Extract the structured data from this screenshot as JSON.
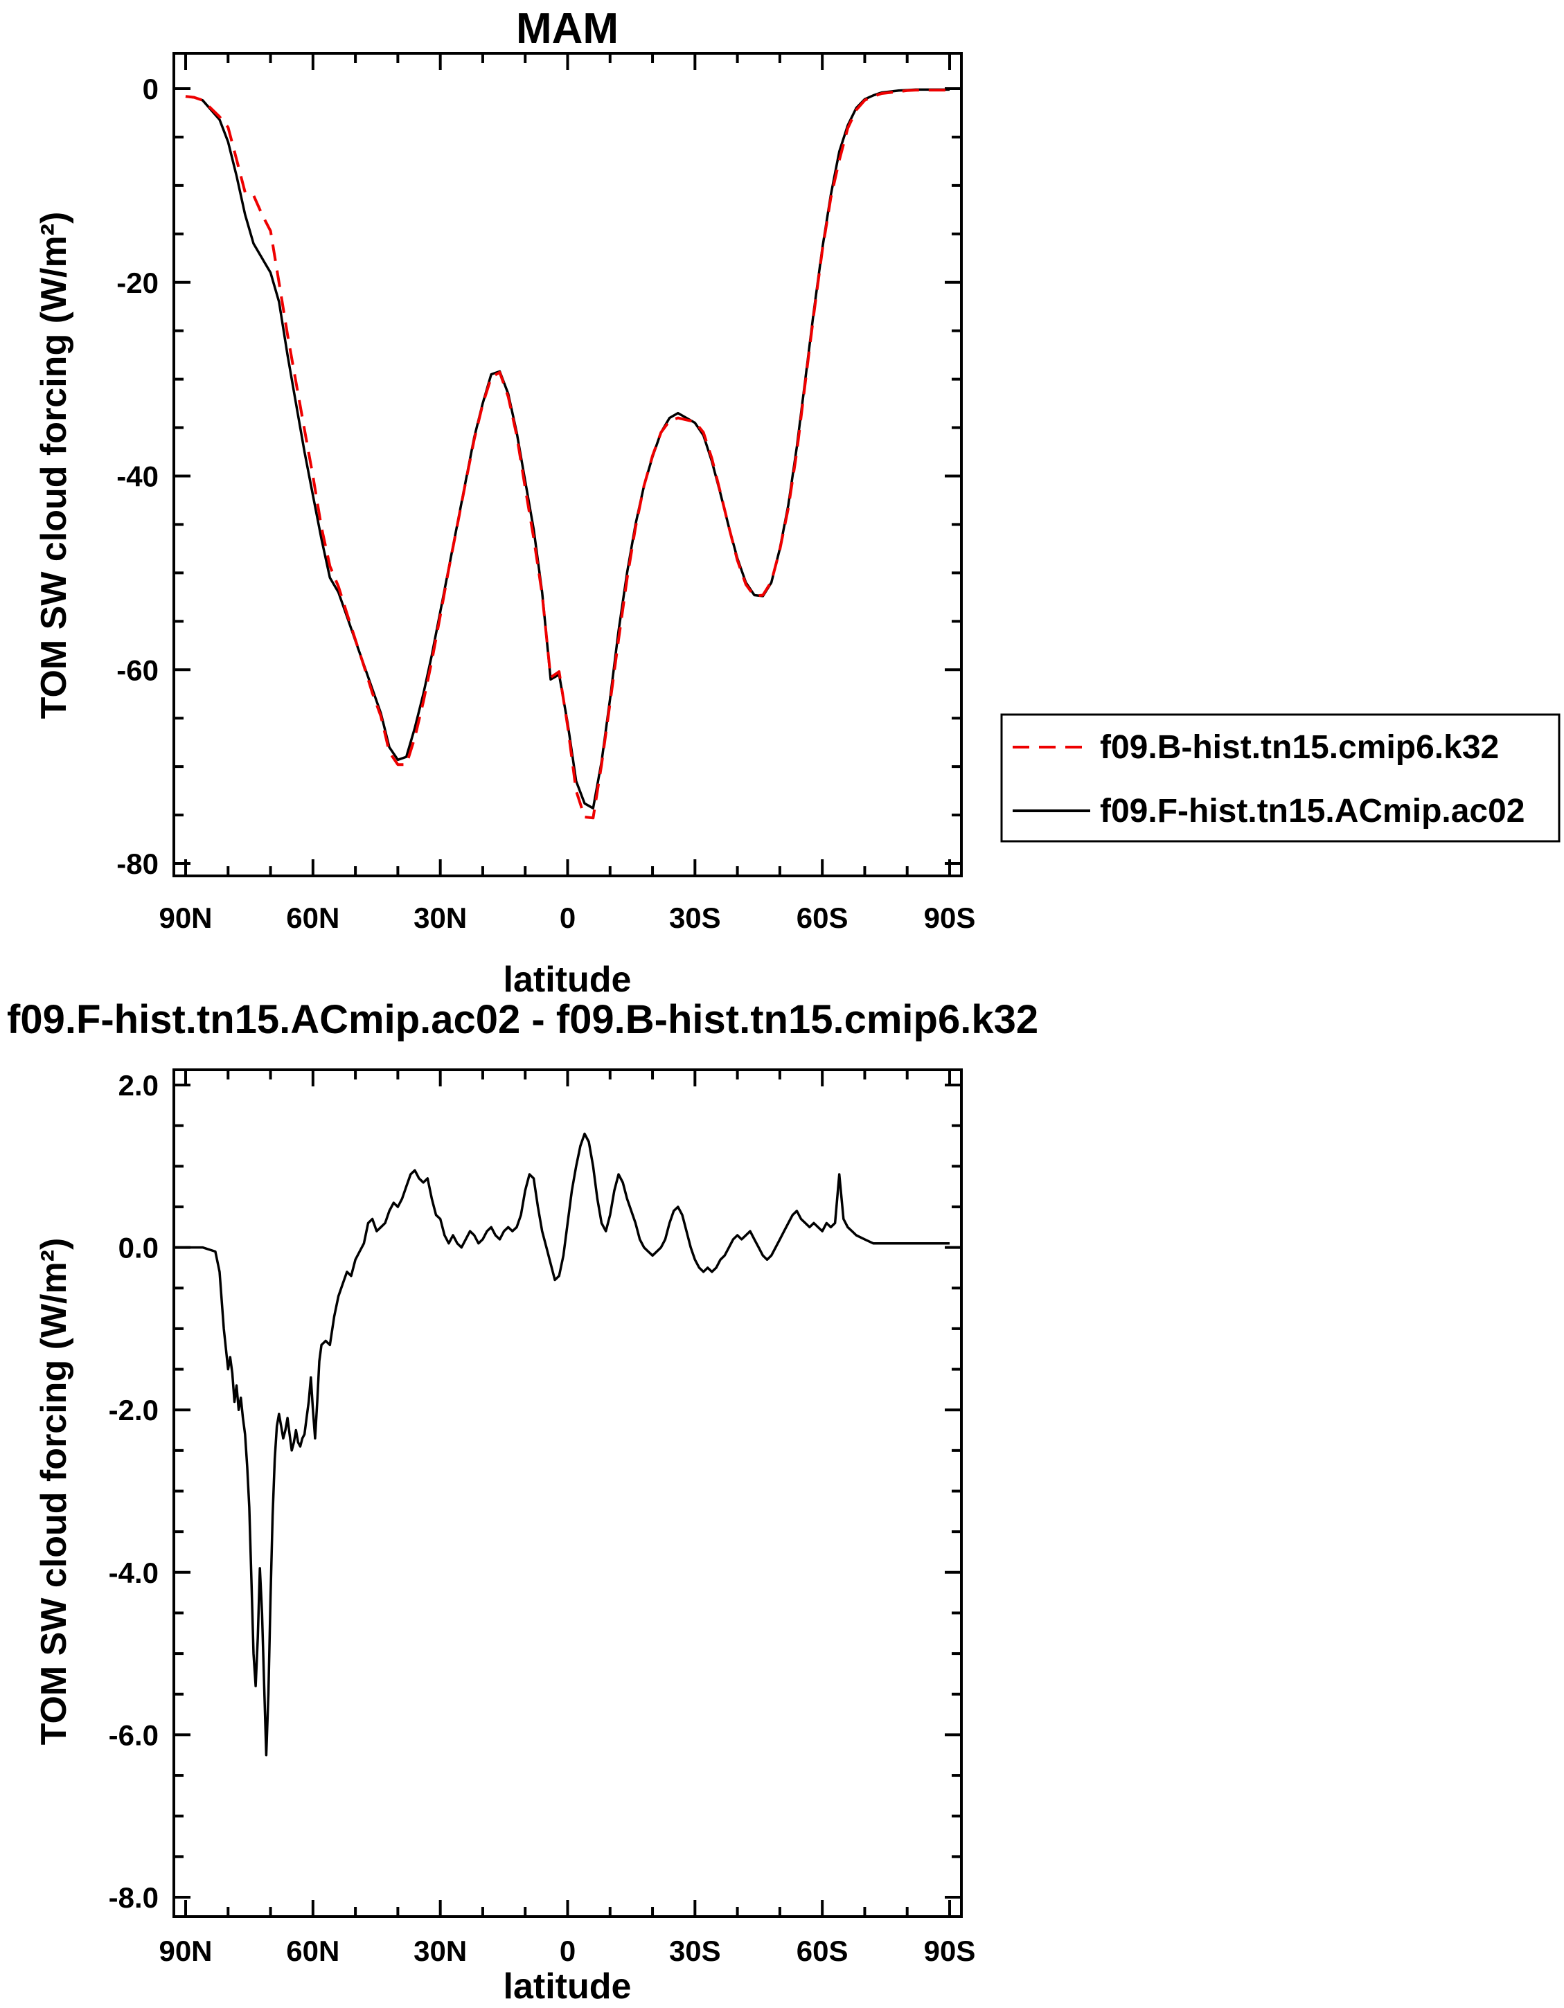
{
  "figure": {
    "background": "#ffffff",
    "frame_color": "#000000"
  },
  "chart_data": [
    {
      "type": "line",
      "title": "MAM",
      "xlabel": "latitude",
      "ylabel": "TOM SW cloud forcing (W/m²)",
      "xlim": [
        90,
        -90
      ],
      "ylim": [
        0,
        -80
      ],
      "grid": false,
      "legend_position": "outside-right",
      "x_ticks": {
        "values": [
          90,
          60,
          30,
          0,
          -30,
          -60,
          -90
        ],
        "labels": [
          "90N",
          "60N",
          "30N",
          "0",
          "30S",
          "60S",
          "90S"
        ],
        "minor_step": 10
      },
      "y_ticks": {
        "values": [
          0,
          -20,
          -40,
          -60,
          -80
        ],
        "labels": [
          "0",
          "-20",
          "-40",
          "-60",
          "-80"
        ],
        "minor_step": 5
      },
      "x": [
        90,
        88,
        86,
        84,
        82,
        80,
        78,
        76,
        74,
        72,
        70,
        68,
        66,
        64,
        62,
        60,
        58,
        56,
        54,
        52,
        50,
        48,
        46,
        44,
        42,
        40,
        38,
        36,
        34,
        32,
        30,
        28,
        26,
        24,
        22,
        20,
        18,
        16,
        14,
        12,
        10,
        8,
        6,
        4,
        2,
        0,
        -2,
        -4,
        -6,
        -8,
        -10,
        -12,
        -14,
        -16,
        -18,
        -20,
        -22,
        -24,
        -26,
        -28,
        -30,
        -32,
        -34,
        -36,
        -38,
        -40,
        -42,
        -44,
        -46,
        -48,
        -50,
        -52,
        -54,
        -56,
        -58,
        -60,
        -62,
        -64,
        -66,
        -68,
        -70,
        -72,
        -74,
        -76,
        -78,
        -80,
        -82,
        -84,
        -86,
        -88,
        -90
      ],
      "series": [
        {
          "name": "f09.B-hist.tn15.cmip6.k32",
          "color": "#ee0000",
          "style": "dashed",
          "values": [
            -0.8,
            -0.9,
            -1.2,
            -2.05,
            -2.9,
            -4.0,
            -7.3,
            -10.7,
            -11.0,
            -13.0,
            -14.7,
            -20.0,
            -25.4,
            -30.3,
            -35.2,
            -40.0,
            -45.3,
            -49.3,
            -51.4,
            -54.2,
            -56.9,
            -59.6,
            -62.4,
            -64.8,
            -68.5,
            -69.8,
            -69.8,
            -67.0,
            -63.3,
            -59.1,
            -54.4,
            -49.6,
            -45.1,
            -40.6,
            -36.2,
            -32.6,
            -29.8,
            -29.3,
            -31.8,
            -35.8,
            -41.2,
            -46.4,
            -52.2,
            -60.8,
            -60.2,
            -65.8,
            -72.5,
            -75.2,
            -75.3,
            -69.8,
            -63.4,
            -56.9,
            -50.6,
            -45.3,
            -41.0,
            -37.9,
            -35.5,
            -34.3,
            -34.0,
            -34.2,
            -34.4,
            -35.5,
            -38.2,
            -41.7,
            -45.3,
            -48.7,
            -51.2,
            -52.4,
            -52.3,
            -50.9,
            -47.6,
            -43.3,
            -37.5,
            -30.3,
            -23.3,
            -16.7,
            -11.3,
            -7.4,
            -4.1,
            -2.2,
            -1.2,
            -0.8,
            -0.5,
            -0.4,
            -0.3,
            -0.2,
            -0.15,
            -0.15,
            -0.15,
            -0.15,
            -0.15
          ]
        },
        {
          "name": "f09.F-hist.tn15.ACmip.ac02",
          "color": "#000000",
          "style": "solid",
          "values": [
            -0.8,
            -0.9,
            -1.2,
            -2.2,
            -3.2,
            -5.5,
            -9.0,
            -13.0,
            -16.0,
            -17.5,
            -19.0,
            -22.0,
            -27.5,
            -32.5,
            -37.5,
            -42.0,
            -46.5,
            -50.5,
            -52.0,
            -54.5,
            -57.0,
            -59.5,
            -62.0,
            -64.5,
            -68.0,
            -69.3,
            -69.0,
            -66.0,
            -62.5,
            -58.5,
            -54.0,
            -49.5,
            -45.0,
            -40.5,
            -36.0,
            -32.5,
            -29.5,
            -29.2,
            -31.5,
            -35.5,
            -40.5,
            -45.5,
            -52.0,
            -61.0,
            -60.5,
            -65.5,
            -71.5,
            -73.8,
            -74.3,
            -69.5,
            -63.0,
            -56.0,
            -50.0,
            -45.0,
            -41.0,
            -38.0,
            -35.5,
            -34.0,
            -33.5,
            -34.0,
            -34.5,
            -35.8,
            -38.5,
            -41.8,
            -45.3,
            -48.5,
            -51.0,
            -52.3,
            -52.4,
            -51.0,
            -47.5,
            -43.0,
            -37.0,
            -30.0,
            -23.0,
            -16.5,
            -11.0,
            -6.5,
            -3.8,
            -2.0,
            -1.1,
            -0.7,
            -0.4,
            -0.3,
            -0.2,
            -0.15,
            -0.1,
            -0.1,
            -0.1,
            -0.1,
            -0.1
          ]
        }
      ]
    },
    {
      "type": "line",
      "title": "f09.F-hist.tn15.ACmip.ac02 - f09.B-hist.tn15.cmip6.k32",
      "xlabel": "latitude",
      "ylabel": "TOM SW cloud forcing (W/m²)",
      "xlim": [
        90,
        -90
      ],
      "ylim": [
        2.0,
        -8.0
      ],
      "grid": false,
      "x_ticks": {
        "values": [
          90,
          60,
          30,
          0,
          -30,
          -60,
          -90
        ],
        "labels": [
          "90N",
          "60N",
          "30N",
          "0",
          "30S",
          "60S",
          "90S"
        ],
        "minor_step": 10
      },
      "y_ticks": {
        "values": [
          2.0,
          0.0,
          -2.0,
          -4.0,
          -6.0,
          -8.0
        ],
        "labels": [
          "2.0",
          "0.0",
          "-2.0",
          "-4.0",
          "-6.0",
          "-8.0"
        ],
        "minor_step": 0.5
      },
      "series": [
        {
          "color": "#000000",
          "style": "solid",
          "x": [
            90,
            86,
            83,
            82,
            81,
            80,
            79.5,
            79,
            78.5,
            78,
            77.5,
            77,
            76.5,
            76,
            75.5,
            75,
            74.5,
            74,
            73.5,
            73,
            72.5,
            72,
            71.5,
            71,
            70.5,
            70,
            69.5,
            69,
            68.5,
            68,
            67.5,
            67,
            66.5,
            66,
            65.5,
            65,
            64.5,
            64,
            63.5,
            63,
            62.5,
            62,
            61.5,
            61,
            60.5,
            60,
            59.5,
            59,
            58.5,
            58,
            57,
            56,
            55,
            54,
            53,
            52,
            51,
            50,
            49,
            48,
            47,
            46,
            45,
            44,
            43,
            42,
            41,
            40,
            39,
            38,
            37,
            36,
            35,
            34,
            33,
            32,
            31,
            30,
            29,
            28,
            27,
            26,
            25,
            24,
            23,
            22,
            21,
            20,
            19,
            18,
            17,
            16,
            15,
            14,
            13,
            12,
            11,
            10,
            9,
            8,
            7,
            6,
            5,
            4,
            3,
            2,
            1,
            0,
            -1,
            -2,
            -3,
            -4,
            -5,
            -6,
            -7,
            -8,
            -9,
            -10,
            -11,
            -12,
            -13,
            -14,
            -15,
            -16,
            -17,
            -18,
            -19,
            -20,
            -21,
            -22,
            -23,
            -24,
            -25,
            -26,
            -27,
            -28,
            -29,
            -30,
            -31,
            -32,
            -33,
            -34,
            -35,
            -36,
            -37,
            -38,
            -39,
            -40,
            -41,
            -42,
            -43,
            -44,
            -45,
            -46,
            -47,
            -48,
            -49,
            -50,
            -51,
            -52,
            -53,
            -54,
            -55,
            -56,
            -57,
            -58,
            -59,
            -60,
            -61,
            -62,
            -63,
            -64,
            -65,
            -66,
            -67,
            -68,
            -70,
            -72,
            -75,
            -80,
            -85,
            -90
          ],
          "values": [
            0,
            0,
            -0.05,
            -0.3,
            -1.0,
            -1.5,
            -1.35,
            -1.55,
            -1.9,
            -1.7,
            -2.0,
            -1.85,
            -2.1,
            -2.3,
            -2.7,
            -3.2,
            -4.1,
            -5.0,
            -5.4,
            -4.8,
            -3.95,
            -4.5,
            -5.4,
            -6.25,
            -5.5,
            -4.3,
            -3.3,
            -2.6,
            -2.2,
            -2.05,
            -2.2,
            -2.35,
            -2.25,
            -2.1,
            -2.3,
            -2.5,
            -2.4,
            -2.25,
            -2.4,
            -2.45,
            -2.35,
            -2.3,
            -2.1,
            -1.9,
            -1.6,
            -2.0,
            -2.35,
            -1.9,
            -1.4,
            -1.2,
            -1.15,
            -1.2,
            -0.85,
            -0.6,
            -0.45,
            -0.3,
            -0.35,
            -0.15,
            -0.05,
            0.05,
            0.3,
            0.35,
            0.2,
            0.25,
            0.3,
            0.45,
            0.55,
            0.5,
            0.6,
            0.75,
            0.9,
            0.95,
            0.85,
            0.8,
            0.85,
            0.6,
            0.4,
            0.35,
            0.15,
            0.05,
            0.15,
            0.05,
            0.0,
            0.1,
            0.2,
            0.15,
            0.05,
            0.1,
            0.2,
            0.25,
            0.15,
            0.1,
            0.2,
            0.25,
            0.2,
            0.25,
            0.4,
            0.7,
            0.9,
            0.85,
            0.5,
            0.2,
            0.0,
            -0.2,
            -0.4,
            -0.35,
            -0.1,
            0.3,
            0.7,
            1.0,
            1.25,
            1.4,
            1.3,
            1.0,
            0.6,
            0.3,
            0.2,
            0.4,
            0.7,
            0.9,
            0.8,
            0.6,
            0.45,
            0.3,
            0.1,
            0.0,
            -0.05,
            -0.1,
            -0.05,
            0.0,
            0.1,
            0.3,
            0.45,
            0.5,
            0.4,
            0.2,
            0.0,
            -0.15,
            -0.25,
            -0.3,
            -0.25,
            -0.3,
            -0.25,
            -0.15,
            -0.1,
            0.0,
            0.1,
            0.15,
            0.1,
            0.15,
            0.2,
            0.1,
            0.0,
            -0.1,
            -0.15,
            -0.1,
            0.0,
            0.1,
            0.2,
            0.3,
            0.4,
            0.45,
            0.35,
            0.3,
            0.25,
            0.3,
            0.25,
            0.2,
            0.3,
            0.25,
            0.3,
            0.9,
            0.35,
            0.25,
            0.2,
            0.15,
            0.1,
            0.05,
            0.05,
            0.05,
            0.05,
            0.05
          ]
        }
      ]
    }
  ]
}
